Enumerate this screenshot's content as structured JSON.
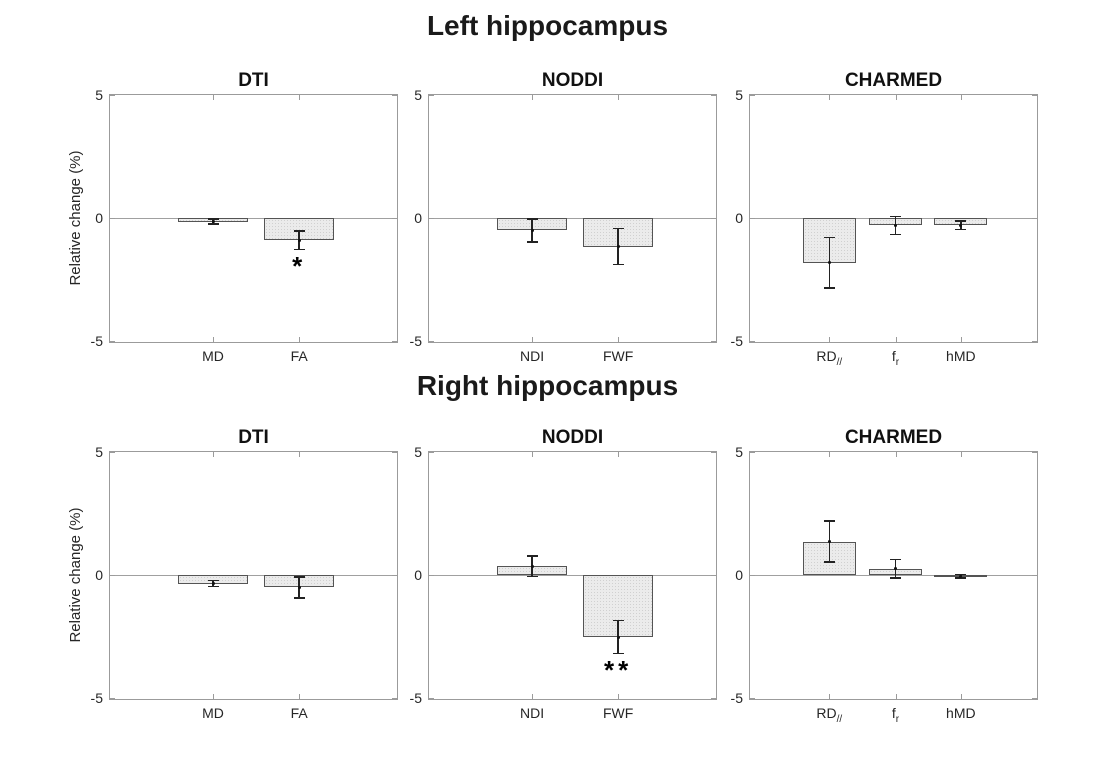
{
  "figure": {
    "section_titles": [
      "Left hippocampus",
      "Right hippocampus"
    ],
    "colors": {
      "background": "#ffffff",
      "bar_fill": "#ebebeb",
      "bar_edge": "#545454",
      "axis": "#9b9b9b",
      "zero_line": "#a0a0a0",
      "error_bar": "#222222",
      "text": "#1f1f1f"
    }
  },
  "chart_data": [
    {
      "type": "bar",
      "group": "Left hippocampus",
      "title": "DTI",
      "ylabel": "Relative change (%)",
      "ylim": [
        -5,
        5
      ],
      "yticks": [
        5,
        0,
        -5
      ],
      "grid": false,
      "legend": "none",
      "categories": [
        "MD",
        "FA"
      ],
      "category_parts": [
        [
          "MD",
          ""
        ],
        [
          "FA",
          ""
        ]
      ],
      "values": [
        -0.15,
        -0.9
      ],
      "errors": [
        0.13,
        0.4
      ],
      "significance": [
        "",
        "*"
      ]
    },
    {
      "type": "bar",
      "group": "Left hippocampus",
      "title": "NODDI",
      "ylabel": "",
      "ylim": [
        -5,
        5
      ],
      "yticks": [
        5,
        0,
        -5
      ],
      "grid": false,
      "legend": "none",
      "categories": [
        "NDI",
        "FWF"
      ],
      "category_parts": [
        [
          "NDI",
          ""
        ],
        [
          "FWF",
          ""
        ]
      ],
      "values": [
        -0.5,
        -1.15
      ],
      "errors": [
        0.5,
        0.75
      ],
      "significance": [
        "",
        ""
      ]
    },
    {
      "type": "bar",
      "group": "Left hippocampus",
      "title": "CHARMED",
      "ylabel": "",
      "ylim": [
        -5,
        5
      ],
      "yticks": [
        5,
        0,
        -5
      ],
      "grid": false,
      "legend": "none",
      "categories": [
        "RD//",
        "fr",
        "hMD"
      ],
      "category_parts": [
        [
          "RD",
          "//"
        ],
        [
          "f",
          "r"
        ],
        [
          "hMD",
          ""
        ]
      ],
      "values": [
        -1.8,
        -0.3,
        -0.3
      ],
      "errors": [
        1.05,
        0.4,
        0.2
      ],
      "significance": [
        "",
        "",
        ""
      ]
    },
    {
      "type": "bar",
      "group": "Right hippocampus",
      "title": "DTI",
      "ylabel": "Relative change (%)",
      "ylim": [
        -5,
        5
      ],
      "yticks": [
        5,
        0,
        -5
      ],
      "grid": false,
      "legend": "none",
      "categories": [
        "MD",
        "FA"
      ],
      "category_parts": [
        [
          "MD",
          ""
        ],
        [
          "FA",
          ""
        ]
      ],
      "values": [
        -0.35,
        -0.5
      ],
      "errors": [
        0.15,
        0.45
      ],
      "significance": [
        "",
        ""
      ]
    },
    {
      "type": "bar",
      "group": "Right hippocampus",
      "title": "NODDI",
      "ylabel": "",
      "ylim": [
        -5,
        5
      ],
      "yticks": [
        5,
        0,
        -5
      ],
      "grid": false,
      "legend": "none",
      "categories": [
        "NDI",
        "FWF"
      ],
      "category_parts": [
        [
          "NDI",
          ""
        ],
        [
          "FWF",
          ""
        ]
      ],
      "values": [
        0.35,
        -2.5
      ],
      "errors": [
        0.45,
        0.7
      ],
      "significance": [
        "",
        "**"
      ]
    },
    {
      "type": "bar",
      "group": "Right hippocampus",
      "title": "CHARMED",
      "ylabel": "",
      "ylim": [
        -5,
        5
      ],
      "yticks": [
        5,
        0,
        -5
      ],
      "grid": false,
      "legend": "none",
      "categories": [
        "RD//",
        "fr",
        "hMD"
      ],
      "category_parts": [
        [
          "RD",
          "//"
        ],
        [
          "f",
          "r"
        ],
        [
          "hMD",
          ""
        ]
      ],
      "values": [
        1.35,
        0.25,
        -0.05
      ],
      "errors": [
        0.85,
        0.4,
        0.1
      ],
      "significance": [
        "",
        "",
        ""
      ]
    }
  ]
}
